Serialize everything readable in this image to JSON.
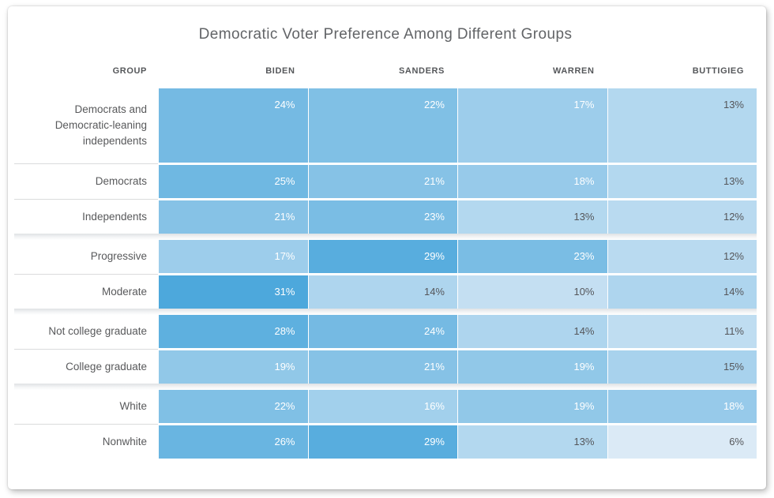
{
  "chart_data": {
    "type": "heatmap",
    "title": "Democratic Voter Preference Among Different Groups",
    "group_column_header": "GROUP",
    "series_headers": [
      "BIDEN",
      "SANDERS",
      "WARREN",
      "BUTTIGIEG"
    ],
    "value_unit": "%",
    "sections": [
      {
        "rows": [
          {
            "group": "Democrats and Democratic-leaning independents",
            "values": [
              24,
              22,
              17,
              13
            ]
          },
          {
            "group": "Democrats",
            "values": [
              25,
              21,
              18,
              13
            ]
          },
          {
            "group": "Independents",
            "values": [
              21,
              23,
              13,
              12
            ]
          }
        ]
      },
      {
        "rows": [
          {
            "group": "Progressive",
            "values": [
              17,
              29,
              23,
              12
            ]
          },
          {
            "group": "Moderate",
            "values": [
              31,
              14,
              10,
              14
            ]
          }
        ]
      },
      {
        "rows": [
          {
            "group": "Not college graduate",
            "values": [
              28,
              24,
              14,
              11
            ]
          },
          {
            "group": "College graduate",
            "values": [
              19,
              21,
              19,
              15
            ]
          }
        ]
      },
      {
        "rows": [
          {
            "group": "White",
            "values": [
              22,
              16,
              19,
              18
            ]
          },
          {
            "group": "Nonwhite",
            "values": [
              26,
              29,
              13,
              6
            ]
          }
        ]
      }
    ],
    "color_scale": {
      "min_value": 6,
      "max_value": 31,
      "min_color": "#dbeaf6",
      "max_color": "#4da8dc",
      "light_text_threshold": 16,
      "light_text_color": "#ffffff",
      "dark_text_color": "#55565a"
    }
  }
}
